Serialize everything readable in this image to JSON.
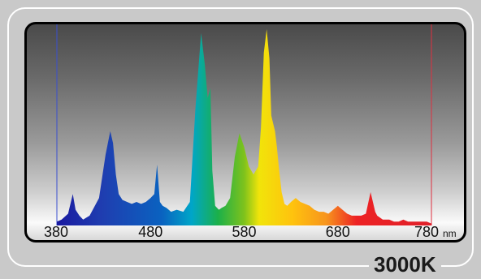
{
  "badge_text": "3000K",
  "chart_data": {
    "type": "area",
    "title": "",
    "xlabel": "nm",
    "ylabel": "",
    "xlim": [
      380,
      780
    ],
    "ylim": [
      0,
      1
    ],
    "x_ticks": [
      "380",
      "480",
      "580",
      "680",
      "780"
    ],
    "unit": "nm",
    "grid": false,
    "legend": "none",
    "series": [
      {
        "x": [
          380,
          385,
          392,
          397,
          400,
          404,
          408,
          415,
          425,
          432,
          437,
          440,
          443,
          446,
          450,
          455,
          460,
          465,
          470,
          475,
          480,
          484,
          487,
          490,
          493,
          497,
          502,
          508,
          515,
          522,
          528,
          534,
          538,
          541,
          544,
          546,
          549,
          553,
          556,
          560,
          565,
          570,
          575,
          580,
          585,
          590,
          595,
          598,
          601,
          604,
          607,
          609,
          611,
          613,
          615,
          617,
          620,
          623,
          626,
          630,
          635,
          640,
          645,
          650,
          655,
          660,
          665,
          670,
          675,
          680,
          685,
          690,
          695,
          700,
          705,
          710,
          715,
          720,
          722,
          725,
          728,
          730,
          732,
          735,
          740,
          745,
          750,
          755,
          760,
          765,
          770,
          775,
          780
        ],
        "y": [
          0.02,
          0.03,
          0.06,
          0.16,
          0.08,
          0.05,
          0.03,
          0.05,
          0.14,
          0.36,
          0.48,
          0.42,
          0.26,
          0.16,
          0.13,
          0.12,
          0.11,
          0.12,
          0.11,
          0.12,
          0.14,
          0.16,
          0.31,
          0.12,
          0.1,
          0.09,
          0.07,
          0.08,
          0.07,
          0.12,
          0.6,
          0.98,
          0.82,
          0.65,
          0.7,
          0.28,
          0.1,
          0.08,
          0.09,
          0.1,
          0.14,
          0.35,
          0.47,
          0.4,
          0.3,
          0.26,
          0.3,
          0.5,
          0.88,
          1.0,
          0.85,
          0.56,
          0.52,
          0.48,
          0.4,
          0.3,
          0.17,
          0.11,
          0.1,
          0.12,
          0.14,
          0.12,
          0.11,
          0.1,
          0.08,
          0.07,
          0.07,
          0.06,
          0.08,
          0.1,
          0.08,
          0.06,
          0.05,
          0.05,
          0.05,
          0.06,
          0.17,
          0.07,
          0.05,
          0.04,
          0.03,
          0.03,
          0.03,
          0.03,
          0.02,
          0.02,
          0.03,
          0.02,
          0.02,
          0.02,
          0.02,
          0.02,
          0.01
        ]
      }
    ]
  }
}
